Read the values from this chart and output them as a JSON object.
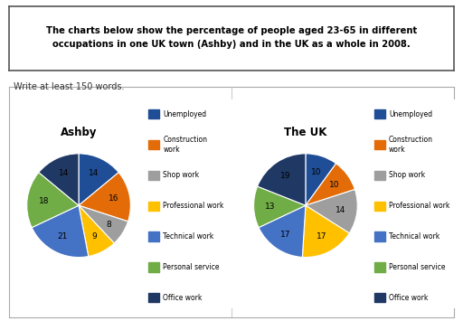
{
  "title_box": "The charts below show the percentage of people aged 23-65 in different\noccupations in one UK town (Ashby) and in the UK as a whole in 2008.",
  "subtitle": "Write at least 150 words.",
  "ashby_title": "Ashby",
  "uk_title": "The UK",
  "categories": [
    "Unemployed",
    "Construction\nwork",
    "Shop work",
    "Professional work",
    "Technical work",
    "Personal service",
    "Office work"
  ],
  "ashby_values": [
    14,
    16,
    8,
    9,
    21,
    18,
    14
  ],
  "uk_values": [
    10,
    10,
    14,
    17,
    17,
    13,
    19
  ],
  "colors": [
    "#1f4e96",
    "#e36c09",
    "#9e9e9e",
    "#ffc000",
    "#4472c4",
    "#70ad47",
    "#1f3864"
  ],
  "background": "#ffffff",
  "chart_bg": "#ffffff"
}
